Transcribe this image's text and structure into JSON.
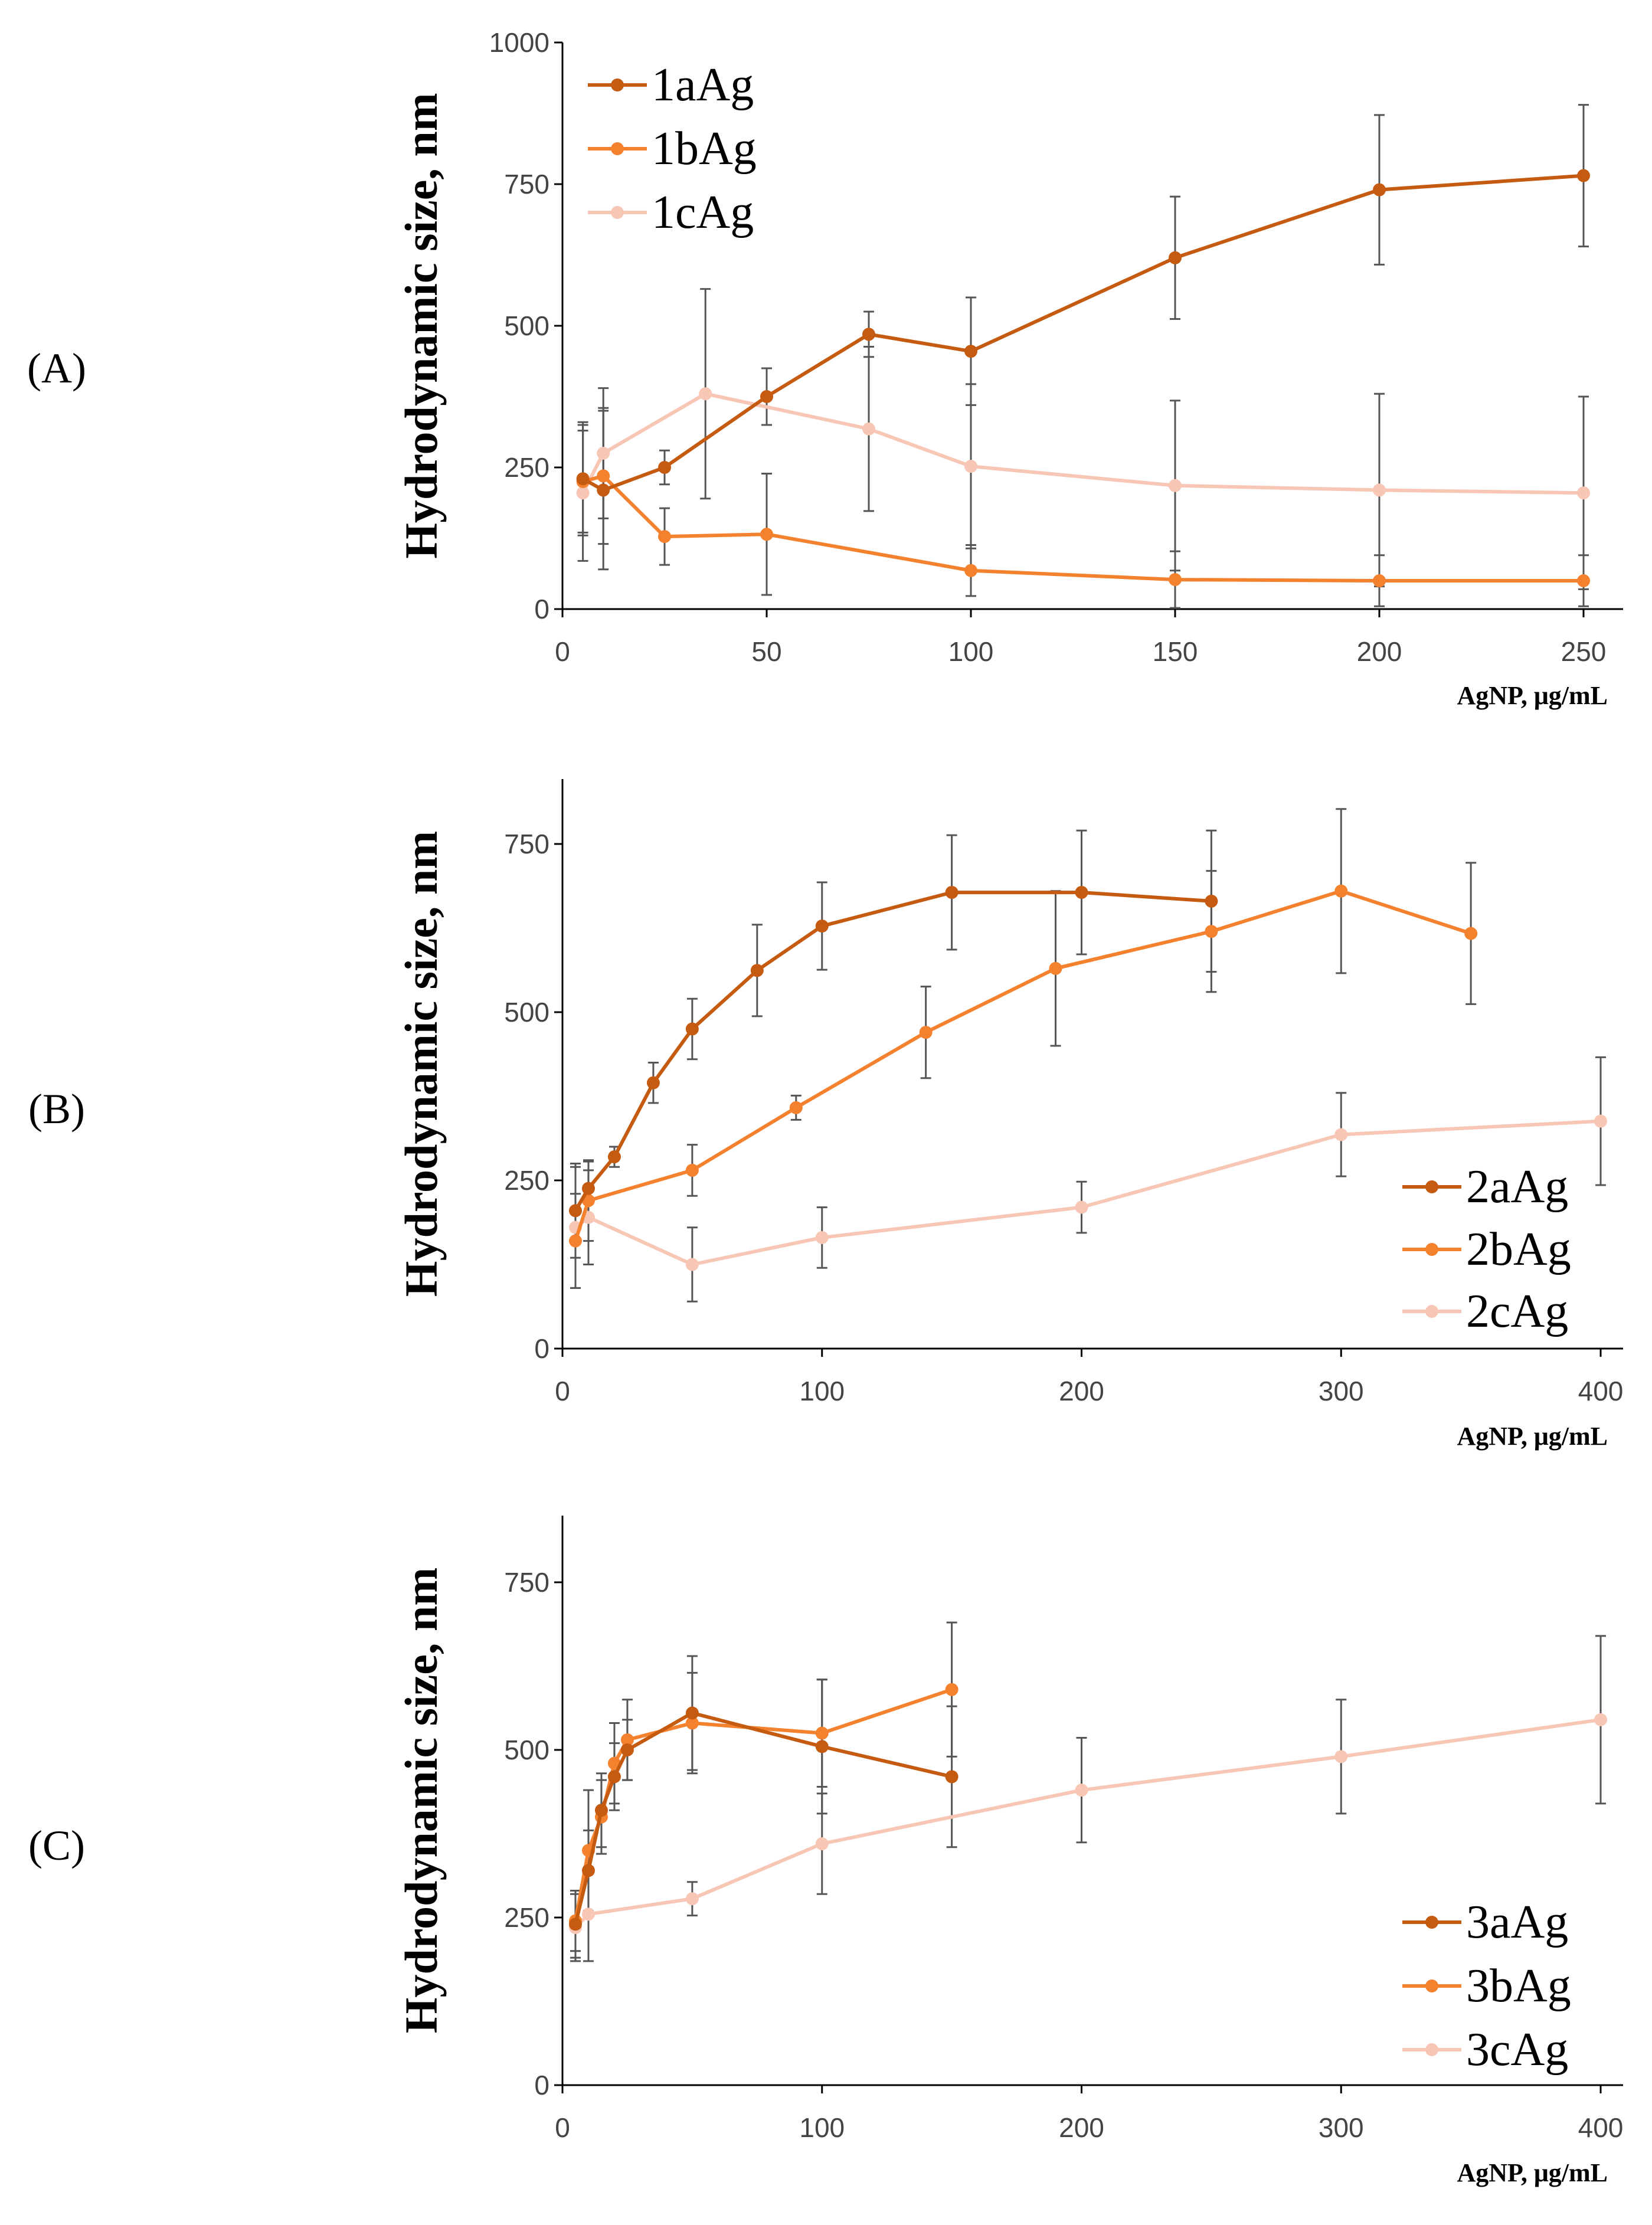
{
  "chart_data": [
    {
      "type": "line",
      "panel_label": "(A)",
      "xlabel": "AgNP, μg/mL",
      "ylabel": "Hydrodynamic size, nm",
      "xlim": [
        0,
        260
      ],
      "ylim": [
        0,
        1000
      ],
      "xticks": [
        0,
        50,
        100,
        150,
        200,
        250
      ],
      "yticks": [
        0,
        250,
        500,
        750,
        1000
      ],
      "legend_position": "top-left",
      "series": [
        {
          "name": "1aAg",
          "color": "#C55A11",
          "x": [
            5,
            10,
            25,
            50,
            75,
            100,
            150,
            200,
            250
          ],
          "y": [
            230,
            210,
            250,
            375,
            485,
            455,
            620,
            740,
            765
          ],
          "err": [
            100,
            140,
            30,
            50,
            40,
            95,
            108,
            132,
            125
          ]
        },
        {
          "name": "1bAg",
          "color": "#F4812D",
          "x": [
            5,
            10,
            25,
            50,
            100,
            150,
            200,
            250
          ],
          "y": [
            225,
            235,
            128,
            132,
            68,
            52,
            50,
            50
          ],
          "err": [
            90,
            120,
            50,
            107,
            45,
            50,
            45,
            45
          ]
        },
        {
          "name": "1cAg",
          "color": "#F8C6B5",
          "x": [
            5,
            10,
            35,
            75,
            100,
            150,
            200,
            250
          ],
          "y": [
            205,
            275,
            380,
            318,
            252,
            218,
            210,
            205
          ],
          "err": [
            120,
            115,
            185,
            145,
            145,
            150,
            170,
            170
          ]
        }
      ]
    },
    {
      "type": "line",
      "panel_label": "(B)",
      "xlabel": "AgNP, μg/mL",
      "ylabel": "Hydrodynamic size, nm",
      "xlim": [
        0,
        410
      ],
      "ylim": [
        0,
        850
      ],
      "xticks": [
        0,
        100,
        200,
        300,
        400
      ],
      "yticks": [
        0,
        250,
        500,
        750
      ],
      "legend_position": "bottom-right",
      "series": [
        {
          "name": "2aAg",
          "color": "#C55A11",
          "x": [
            5,
            10,
            20,
            35,
            50,
            75,
            100,
            150,
            200,
            250
          ],
          "y": [
            205,
            238,
            285,
            395,
            475,
            562,
            628,
            678,
            678,
            665
          ],
          "err": [
            70,
            40,
            15,
            30,
            45,
            68,
            65,
            85,
            92,
            105
          ]
        },
        {
          "name": "2bAg",
          "color": "#F4812D",
          "x": [
            5,
            10,
            50,
            90,
            140,
            190,
            250,
            300,
            350
          ],
          "y": [
            160,
            220,
            265,
            358,
            470,
            565,
            620,
            680,
            617
          ],
          "err": [
            70,
            60,
            38,
            18,
            68,
            115,
            90,
            122,
            105
          ]
        },
        {
          "name": "2cAg",
          "color": "#F8C6B5",
          "x": [
            5,
            10,
            50,
            100,
            200,
            300,
            400
          ],
          "y": [
            180,
            195,
            125,
            165,
            210,
            318,
            338
          ],
          "err": [
            90,
            70,
            55,
            45,
            38,
            62,
            95
          ]
        }
      ]
    },
    {
      "type": "line",
      "panel_label": "(C)",
      "xlabel": "AgNP, μg/mL",
      "ylabel": "Hydrodynamic size, nm",
      "xlim": [
        0,
        410
      ],
      "ylim": [
        0,
        850
      ],
      "xticks": [
        0,
        100,
        200,
        300,
        400
      ],
      "yticks": [
        0,
        250,
        500,
        750
      ],
      "legend_position": "bottom-right",
      "series": [
        {
          "name": "3aAg",
          "color": "#C55A11",
          "x": [
            5,
            10,
            15,
            20,
            25,
            50,
            100,
            150
          ],
          "y": [
            240,
            320,
            410,
            460,
            500,
            555,
            505,
            460
          ],
          "err": [
            50,
            60,
            55,
            50,
            45,
            85,
            100,
            105
          ]
        },
        {
          "name": "3bAg",
          "color": "#F4812D",
          "x": [
            5,
            10,
            15,
            20,
            25,
            50,
            100,
            150
          ],
          "y": [
            245,
            350,
            400,
            480,
            515,
            540,
            525,
            590
          ],
          "err": [
            45,
            90,
            55,
            60,
            60,
            75,
            80,
            100
          ]
        },
        {
          "name": "3cAg",
          "color": "#F8C6B5",
          "x": [
            5,
            10,
            50,
            100,
            200,
            300,
            400
          ],
          "y": [
            235,
            255,
            278,
            360,
            440,
            490,
            545
          ],
          "err": [
            50,
            70,
            25,
            75,
            78,
            85,
            125
          ]
        }
      ]
    }
  ]
}
